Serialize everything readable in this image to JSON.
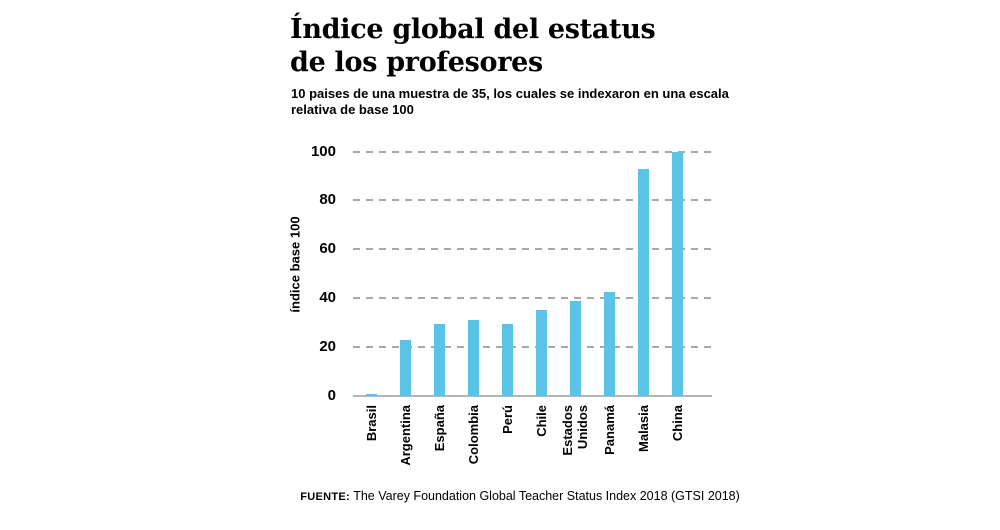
{
  "header": {
    "title_line1": "Índice global del estatus",
    "title_line2": "de los profesores",
    "subtitle": "10 paises de una muestra de 35, los cuales se indexaron en una escala relativa de base 100"
  },
  "chart_data": {
    "type": "bar",
    "title": "Índice global del estatus de los profesores",
    "subtitle": "10 paises de una muestra de 35, los cuales se indexaron en una escala relativa de base 100",
    "categories": [
      "Brasil",
      "Argentina",
      "España",
      "Colombia",
      "Perú",
      "Chile",
      "Estados Unidos",
      "Panamá",
      "Malasia",
      "China"
    ],
    "values": [
      1,
      23,
      29.5,
      31,
      29.5,
      35,
      39,
      42.5,
      93,
      100
    ],
    "xlabel": "",
    "ylabel": "índice base 100",
    "yticks": [
      0,
      20,
      40,
      60,
      80,
      100
    ],
    "ylim": [
      0,
      100
    ],
    "grid": "horizontal-dashed",
    "legend": "none",
    "bar_color": "#5bc3e8",
    "gridline_color": "#a8a8a8",
    "axis_color": "#b5b5b5",
    "text_color": "#000000"
  },
  "footer": {
    "source_label": "Fuente:",
    "source_text": " The Varey Foundation Global Teacher Status Index 2018 (GTSI 2018)"
  }
}
